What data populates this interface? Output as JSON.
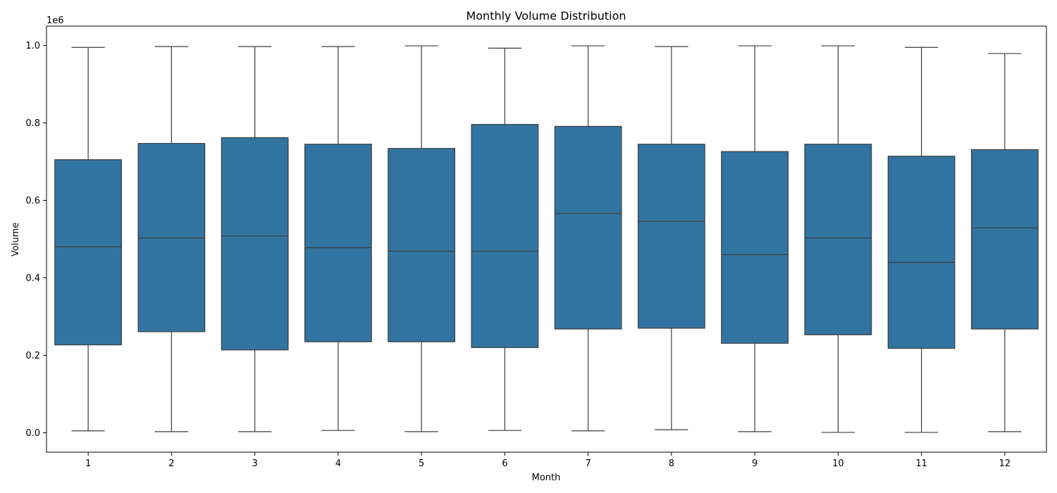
{
  "chart_data": {
    "type": "box",
    "title": "Monthly Volume Distribution",
    "xlabel": "Month",
    "ylabel": "Volume",
    "y_offset_label": "1e6",
    "y_scale_factor": 1000000,
    "ylim": [
      -50000,
      1050000
    ],
    "yticks": [
      0,
      200000,
      400000,
      600000,
      800000,
      1000000
    ],
    "ytick_labels": [
      "0.0",
      "0.2",
      "0.4",
      "0.6",
      "0.8",
      "1.0"
    ],
    "grid": false,
    "box_color": "#3274a1",
    "line_color": "#3d3d3d",
    "categories": [
      "1",
      "2",
      "3",
      "4",
      "5",
      "6",
      "7",
      "8",
      "9",
      "10",
      "11",
      "12"
    ],
    "boxes": [
      {
        "month": "1",
        "min": 5000,
        "q1": 227000,
        "median": 480000,
        "q3": 705000,
        "max": 995000
      },
      {
        "month": "2",
        "min": 3000,
        "q1": 261000,
        "median": 503000,
        "q3": 747000,
        "max": 997000
      },
      {
        "month": "3",
        "min": 3000,
        "q1": 214000,
        "median": 508000,
        "q3": 762000,
        "max": 997000
      },
      {
        "month": "4",
        "min": 6000,
        "q1": 235000,
        "median": 478000,
        "q3": 745000,
        "max": 997000
      },
      {
        "month": "5",
        "min": 3000,
        "q1": 235000,
        "median": 469000,
        "q3": 734000,
        "max": 999000
      },
      {
        "month": "6",
        "min": 6000,
        "q1": 220000,
        "median": 469000,
        "q3": 796000,
        "max": 993000
      },
      {
        "month": "7",
        "min": 5000,
        "q1": 268000,
        "median": 566000,
        "q3": 791000,
        "max": 999000
      },
      {
        "month": "8",
        "min": 8000,
        "q1": 270000,
        "median": 546000,
        "q3": 745000,
        "max": 997000
      },
      {
        "month": "9",
        "min": 3000,
        "q1": 231000,
        "median": 460000,
        "q3": 726000,
        "max": 999000
      },
      {
        "month": "10",
        "min": 1000,
        "q1": 253000,
        "median": 503000,
        "q3": 745000,
        "max": 999000
      },
      {
        "month": "11",
        "min": 1000,
        "q1": 218000,
        "median": 440000,
        "q3": 714000,
        "max": 995000
      },
      {
        "month": "12",
        "min": 3000,
        "q1": 268000,
        "median": 529000,
        "q3": 731000,
        "max": 979000
      }
    ]
  }
}
